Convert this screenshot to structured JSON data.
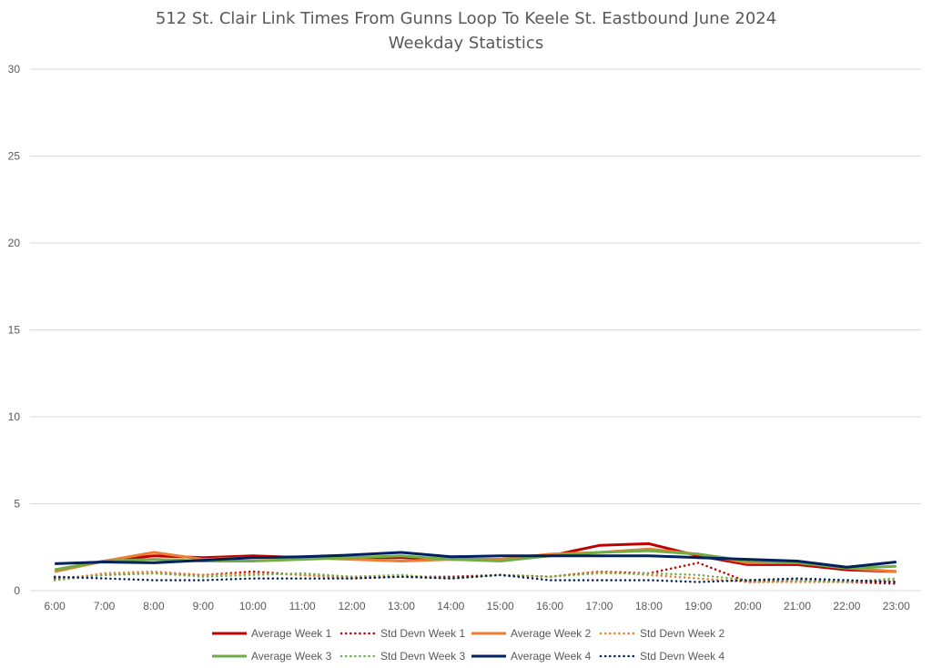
{
  "chart_data": {
    "type": "line",
    "title": "512 St. Clair Link Times From Gunns Loop To Keele St. Eastbound June 2024",
    "subtitle": "Weekday Statistics",
    "xlabel": "",
    "ylabel": "",
    "ylim": [
      0,
      30
    ],
    "yticks": [
      "0",
      "5",
      "10",
      "15",
      "20",
      "25",
      "30"
    ],
    "grid": true,
    "legend_position": "bottom",
    "categories": [
      "6:00",
      "7:00",
      "8:00",
      "9:00",
      "10:00",
      "11:00",
      "12:00",
      "13:00",
      "14:00",
      "15:00",
      "16:00",
      "17:00",
      "18:00",
      "19:00",
      "20:00",
      "21:00",
      "22:00",
      "23:00"
    ],
    "series": [
      {
        "name": "Average Week 1",
        "color": "#c00000",
        "style": "solid",
        "values": [
          1.2,
          1.7,
          2.0,
          1.9,
          2.0,
          1.9,
          1.9,
          1.9,
          1.8,
          1.8,
          2.0,
          2.6,
          2.7,
          2.0,
          1.5,
          1.5,
          1.2,
          1.1
        ]
      },
      {
        "name": "Std Devn Week 1",
        "color": "#c00000",
        "style": "dotted",
        "values": [
          0.7,
          0.9,
          1.0,
          0.9,
          1.1,
          0.9,
          0.8,
          0.8,
          0.8,
          0.9,
          0.8,
          1.1,
          1.0,
          1.6,
          0.5,
          0.6,
          0.5,
          0.4
        ]
      },
      {
        "name": "Average Week 2",
        "color": "#ed7d31",
        "style": "solid",
        "values": [
          1.1,
          1.7,
          2.2,
          1.8,
          1.9,
          1.9,
          1.8,
          1.7,
          1.8,
          1.8,
          2.1,
          2.2,
          2.4,
          2.1,
          1.6,
          1.6,
          1.3,
          1.1
        ]
      },
      {
        "name": "Std Devn Week 2",
        "color": "#ed7d31",
        "style": "dotted",
        "values": [
          0.6,
          1.0,
          1.1,
          0.9,
          1.0,
          0.9,
          0.7,
          0.8,
          0.7,
          0.9,
          0.8,
          1.1,
          0.9,
          0.7,
          0.5,
          0.5,
          0.5,
          0.6
        ]
      },
      {
        "name": "Average Week 3",
        "color": "#70ad47",
        "style": "solid",
        "values": [
          1.2,
          1.7,
          1.8,
          1.7,
          1.7,
          1.8,
          1.9,
          2.0,
          1.8,
          1.7,
          2.0,
          2.2,
          2.3,
          2.1,
          1.7,
          1.6,
          1.3,
          1.4
        ]
      },
      {
        "name": "Std Devn Week 3",
        "color": "#70ad47",
        "style": "dotted",
        "values": [
          0.6,
          0.9,
          1.0,
          0.8,
          0.9,
          1.0,
          0.8,
          0.9,
          0.7,
          0.9,
          0.8,
          1.0,
          1.0,
          0.9,
          0.6,
          0.6,
          0.5,
          0.7
        ]
      },
      {
        "name": "Average Week 4",
        "color": "#002060",
        "style": "solid",
        "values": [
          1.55,
          1.65,
          1.6,
          1.75,
          1.9,
          1.95,
          2.05,
          2.2,
          1.95,
          2.0,
          2.0,
          2.0,
          2.0,
          1.9,
          1.8,
          1.7,
          1.35,
          1.65
        ]
      },
      {
        "name": "Std Devn Week 4",
        "color": "#002060",
        "style": "dotted",
        "values": [
          0.8,
          0.7,
          0.6,
          0.6,
          0.7,
          0.7,
          0.7,
          0.8,
          0.7,
          0.9,
          0.6,
          0.6,
          0.6,
          0.5,
          0.6,
          0.7,
          0.6,
          0.5
        ]
      }
    ]
  }
}
